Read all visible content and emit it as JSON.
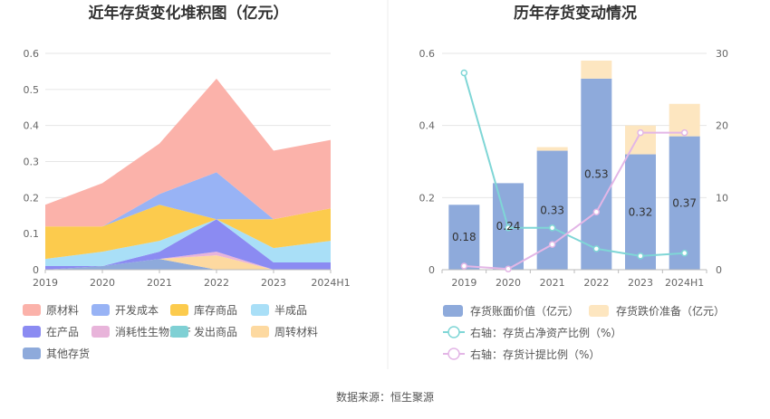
{
  "source": "数据来源：恒生聚源",
  "chart_data": [
    {
      "type": "area",
      "stacked": true,
      "title": "近年存货变化堆积图（亿元）",
      "categories": [
        "2019",
        "2020",
        "2021",
        "2022",
        "2023",
        "2024H1"
      ],
      "ylim": [
        0,
        0.6
      ],
      "yticks": [
        "0",
        "0.1",
        "0.2",
        "0.3",
        "0.4",
        "0.5",
        "0.6"
      ],
      "grid": true,
      "legend_position": "bottom",
      "series": [
        {
          "name": "其他存货",
          "color": "#8eaadb",
          "values": [
            0.0,
            0.01,
            0.03,
            0.0,
            0.0,
            0.0
          ]
        },
        {
          "name": "周转材料",
          "color": "#fdd9a0",
          "values": [
            0.0,
            0.0,
            0.0,
            0.04,
            0.0,
            0.0
          ]
        },
        {
          "name": "发出商品",
          "color": "#7fd0d4",
          "values": [
            0.0,
            0.0,
            0.0,
            0.0,
            0.0,
            0.0
          ]
        },
        {
          "name": "消耗性生物资产",
          "color": "#e8b4da",
          "values": [
            0.0,
            0.0,
            0.0,
            0.01,
            0.0,
            0.0
          ]
        },
        {
          "name": "在产品",
          "color": "#8b8bf2",
          "values": [
            0.01,
            0.0,
            0.02,
            0.09,
            0.02,
            0.02
          ]
        },
        {
          "name": "半成品",
          "color": "#a9dff7",
          "values": [
            0.02,
            0.04,
            0.03,
            0.0,
            0.04,
            0.06
          ]
        },
        {
          "name": "库存商品",
          "color": "#fccb4d",
          "values": [
            0.09,
            0.07,
            0.1,
            0.0,
            0.08,
            0.09
          ]
        },
        {
          "name": "开发成本",
          "color": "#98b3f5",
          "values": [
            0.0,
            0.0,
            0.03,
            0.13,
            0.0,
            0.0
          ]
        },
        {
          "name": "原材料",
          "color": "#fbb2aa",
          "values": [
            0.06,
            0.12,
            0.14,
            0.26,
            0.19,
            0.19
          ]
        }
      ],
      "legend_order": [
        "原材料",
        "开发成本",
        "库存商品",
        "半成品",
        "在产品",
        "消耗性生物资产",
        "发出商品",
        "周转材料",
        "其他存货"
      ]
    },
    {
      "type": "bar",
      "title": "历年存货变动情况",
      "categories": [
        "2019",
        "2020",
        "2021",
        "2022",
        "2023",
        "2024H1"
      ],
      "ylim": [
        0,
        0.6
      ],
      "yticks": [
        "0",
        "0.2",
        "0.4",
        "0.6"
      ],
      "y2lim": [
        0,
        30
      ],
      "y2ticks": [
        "0",
        "10",
        "20",
        "30"
      ],
      "grid": true,
      "legend_position": "bottom",
      "series": [
        {
          "name": "存货账面价值（亿元）",
          "kind": "bar",
          "color": "#8eaadb",
          "values": [
            0.18,
            0.24,
            0.33,
            0.53,
            0.32,
            0.37
          ],
          "labels": [
            "0.18",
            "0.24",
            "0.33",
            "0.53",
            "0.32",
            "0.37"
          ]
        },
        {
          "name": "存货跌价准备（亿元）",
          "kind": "bar-stacked",
          "color": "#fde6c0",
          "values": [
            0.0,
            0.0,
            0.01,
            0.05,
            0.08,
            0.09
          ]
        },
        {
          "name": "右轴：存货占净资产比例（%）",
          "kind": "line",
          "axis": "right",
          "color": "#7fd6d6",
          "values": [
            27.3,
            5.8,
            5.8,
            2.9,
            1.9,
            2.3
          ]
        },
        {
          "name": "右轴：存货计提比例（%）",
          "kind": "line",
          "axis": "right",
          "color": "#e3b6e6",
          "values": [
            0.5,
            0.1,
            3.5,
            8.0,
            19.0,
            19.0
          ]
        }
      ]
    }
  ]
}
